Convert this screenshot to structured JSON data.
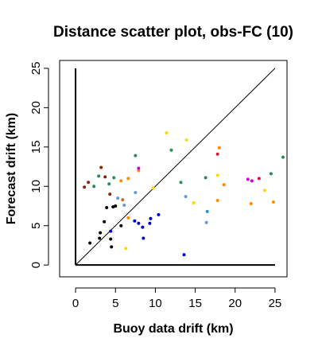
{
  "chart_data": {
    "type": "scatter",
    "title": "Distance scatter plot, obs-FC (10)",
    "xlabel": "Buoy data drift (km)",
    "ylabel": "Forecast drift (km)",
    "xlim": [
      -2,
      26.5
    ],
    "ylim": [
      -1.5,
      26
    ],
    "xticks": [
      0,
      5,
      10,
      15,
      20,
      25
    ],
    "yticks": [
      0,
      5,
      10,
      15,
      20,
      25
    ],
    "xtick_labels": [
      "0",
      "5",
      "10",
      "15",
      "20",
      "25"
    ],
    "ytick_labels": [
      "0",
      "5",
      "10",
      "15",
      "20",
      "25"
    ],
    "reference_lines": [
      {
        "name": "diagonal",
        "x": [
          0,
          25
        ],
        "y": [
          0,
          25
        ]
      },
      {
        "name": "x-axis-line",
        "x": [
          0,
          25
        ],
        "y": [
          0,
          0
        ]
      },
      {
        "name": "y-axis-line",
        "x": [
          0,
          0
        ],
        "y": [
          0,
          25
        ]
      }
    ],
    "grid": false,
    "points": [
      {
        "x": 1.8,
        "y": 2.8,
        "color": "#000000"
      },
      {
        "x": 3.0,
        "y": 3.4,
        "color": "#000000"
      },
      {
        "x": 3.1,
        "y": 4.1,
        "color": "#000000"
      },
      {
        "x": 3.6,
        "y": 5.5,
        "color": "#000000"
      },
      {
        "x": 4.4,
        "y": 3.3,
        "color": "#000000"
      },
      {
        "x": 4.5,
        "y": 2.3,
        "color": "#000000"
      },
      {
        "x": 3.9,
        "y": 7.3,
        "color": "#000000"
      },
      {
        "x": 4.7,
        "y": 7.4,
        "color": "#000000"
      },
      {
        "x": 5.0,
        "y": 7.5,
        "color": "#000000"
      },
      {
        "x": 5.7,
        "y": 5.0,
        "color": "#000000"
      },
      {
        "x": 1.1,
        "y": 9.9,
        "color": "#8b2500"
      },
      {
        "x": 1.6,
        "y": 10.5,
        "color": "#8b2500"
      },
      {
        "x": 3.2,
        "y": 12.4,
        "color": "#8b2500"
      },
      {
        "x": 3.7,
        "y": 11.2,
        "color": "#8b2500"
      },
      {
        "x": 4.3,
        "y": 9.0,
        "color": "#8b2500"
      },
      {
        "x": 2.3,
        "y": 10.0,
        "color": "#2e8b57"
      },
      {
        "x": 2.9,
        "y": 11.3,
        "color": "#2e8b57"
      },
      {
        "x": 4.2,
        "y": 10.3,
        "color": "#2e8b57"
      },
      {
        "x": 4.8,
        "y": 11.1,
        "color": "#2e8b57"
      },
      {
        "x": 7.5,
        "y": 13.9,
        "color": "#2e8b57"
      },
      {
        "x": 12.0,
        "y": 14.6,
        "color": "#2e8b57"
      },
      {
        "x": 13.2,
        "y": 10.5,
        "color": "#2e8b57"
      },
      {
        "x": 16.3,
        "y": 11.1,
        "color": "#2e8b57"
      },
      {
        "x": 24.5,
        "y": 11.6,
        "color": "#2e8b57"
      },
      {
        "x": 26.0,
        "y": 13.7,
        "color": "#2e8b57"
      },
      {
        "x": 4.4,
        "y": 4.3,
        "color": "#0000cd"
      },
      {
        "x": 7.4,
        "y": 5.6,
        "color": "#0000cd"
      },
      {
        "x": 7.9,
        "y": 5.3,
        "color": "#0000cd"
      },
      {
        "x": 8.4,
        "y": 4.8,
        "color": "#0000cd"
      },
      {
        "x": 8.5,
        "y": 3.4,
        "color": "#0000cd"
      },
      {
        "x": 9.3,
        "y": 5.3,
        "color": "#0000cd"
      },
      {
        "x": 9.4,
        "y": 5.9,
        "color": "#0000cd"
      },
      {
        "x": 10.4,
        "y": 6.4,
        "color": "#0000cd"
      },
      {
        "x": 13.6,
        "y": 1.3,
        "color": "#0000cd"
      },
      {
        "x": 5.3,
        "y": 8.5,
        "color": "#6495ed"
      },
      {
        "x": 6.1,
        "y": 7.6,
        "color": "#6495ed"
      },
      {
        "x": 7.5,
        "y": 9.2,
        "color": "#6495ed"
      },
      {
        "x": 13.8,
        "y": 8.7,
        "color": "#6495ed"
      },
      {
        "x": 16.4,
        "y": 5.4,
        "color": "#6495ed"
      },
      {
        "x": 5.7,
        "y": 10.7,
        "color": "#ff8c00"
      },
      {
        "x": 6.6,
        "y": 11.0,
        "color": "#ff8c00"
      },
      {
        "x": 6.6,
        "y": 6.0,
        "color": "#ff8c00"
      },
      {
        "x": 7.9,
        "y": 12.0,
        "color": "#ff8c00"
      },
      {
        "x": 17.8,
        "y": 8.2,
        "color": "#ff8c00"
      },
      {
        "x": 18.0,
        "y": 14.9,
        "color": "#ff8c00"
      },
      {
        "x": 18.6,
        "y": 10.2,
        "color": "#ff8c00"
      },
      {
        "x": 22.0,
        "y": 7.8,
        "color": "#ff8c00"
      },
      {
        "x": 24.8,
        "y": 8.0,
        "color": "#ff8c00"
      },
      {
        "x": 6.3,
        "y": 2.1,
        "color": "#ffd700"
      },
      {
        "x": 9.7,
        "y": 9.8,
        "color": "#ffd700"
      },
      {
        "x": 11.4,
        "y": 16.8,
        "color": "#ffd700"
      },
      {
        "x": 13.9,
        "y": 15.9,
        "color": "#ffd700"
      },
      {
        "x": 14.8,
        "y": 7.9,
        "color": "#ffd700"
      },
      {
        "x": 17.8,
        "y": 11.4,
        "color": "#ffd700"
      },
      {
        "x": 23.7,
        "y": 9.5,
        "color": "#ffd700"
      },
      {
        "x": 5.9,
        "y": 8.3,
        "color": "#d2691e"
      },
      {
        "x": 7.9,
        "y": 12.3,
        "color": "#cd00cd"
      },
      {
        "x": 21.6,
        "y": 10.9,
        "color": "#cd00cd"
      },
      {
        "x": 22.1,
        "y": 10.7,
        "color": "#cd00cd"
      },
      {
        "x": 17.8,
        "y": 14.1,
        "color": "#dc143c"
      },
      {
        "x": 23.0,
        "y": 11.0,
        "color": "#dc143c"
      },
      {
        "x": 16.5,
        "y": 6.8,
        "color": "#1e90ff"
      }
    ]
  }
}
